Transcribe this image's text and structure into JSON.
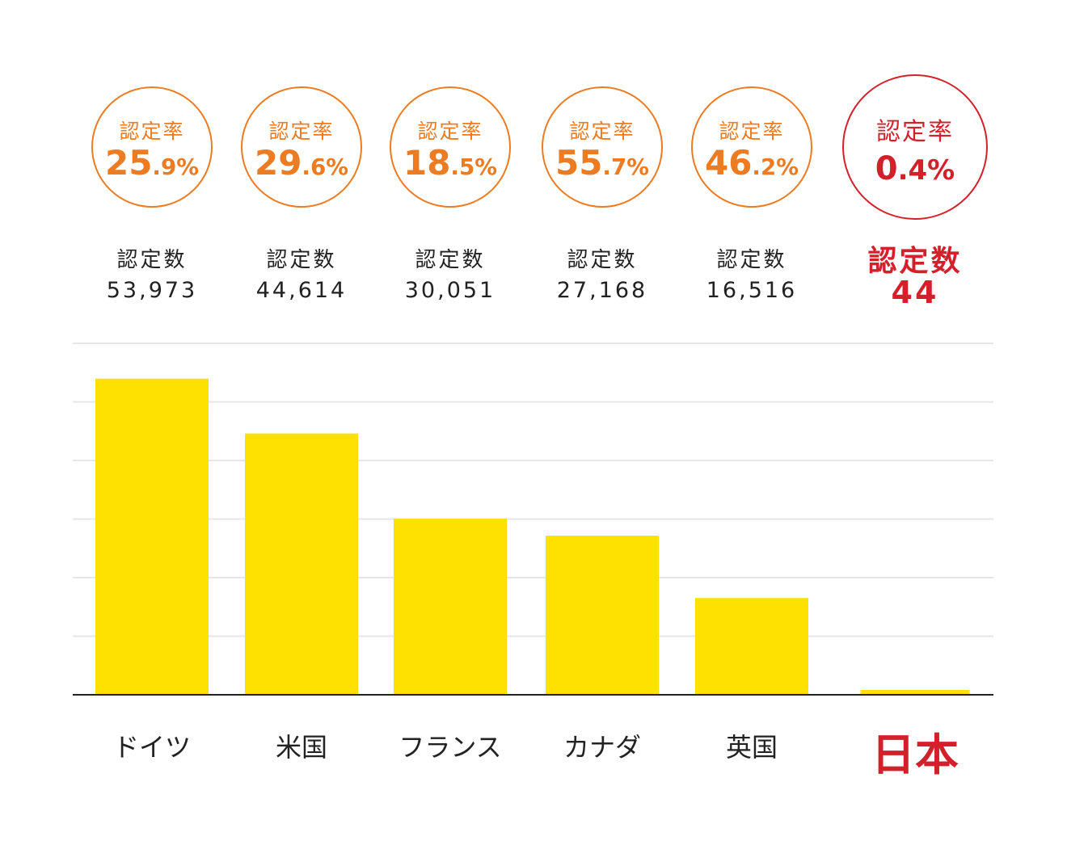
{
  "colors": {
    "accent": "#ED7B22",
    "highlight": "#D3202A",
    "bar": "#FFE100",
    "grid": "#E6E6E6",
    "axis": "#222222",
    "text": "#222222"
  },
  "chart_data": {
    "type": "bar",
    "categories": [
      "ドイツ",
      "米国",
      "フランス",
      "カナダ",
      "英国",
      "日本"
    ],
    "values": [
      53973,
      44614,
      30051,
      27168,
      16516,
      44
    ],
    "ylim": [
      0,
      60000
    ],
    "grid": true,
    "highlight_index": 5,
    "rate_label": "認定率",
    "count_label": "認定数",
    "rates": [
      {
        "int": "25",
        "dec": ".9%"
      },
      {
        "int": "29",
        "dec": ".6%"
      },
      {
        "int": "18",
        "dec": ".5%"
      },
      {
        "int": "55",
        "dec": ".7%"
      },
      {
        "int": "46",
        "dec": ".2%"
      },
      {
        "int": "0",
        "dec": ".4%"
      }
    ],
    "counts_text": [
      "53,973",
      "44,614",
      "30,051",
      "27,168",
      "16,516",
      "44"
    ]
  }
}
